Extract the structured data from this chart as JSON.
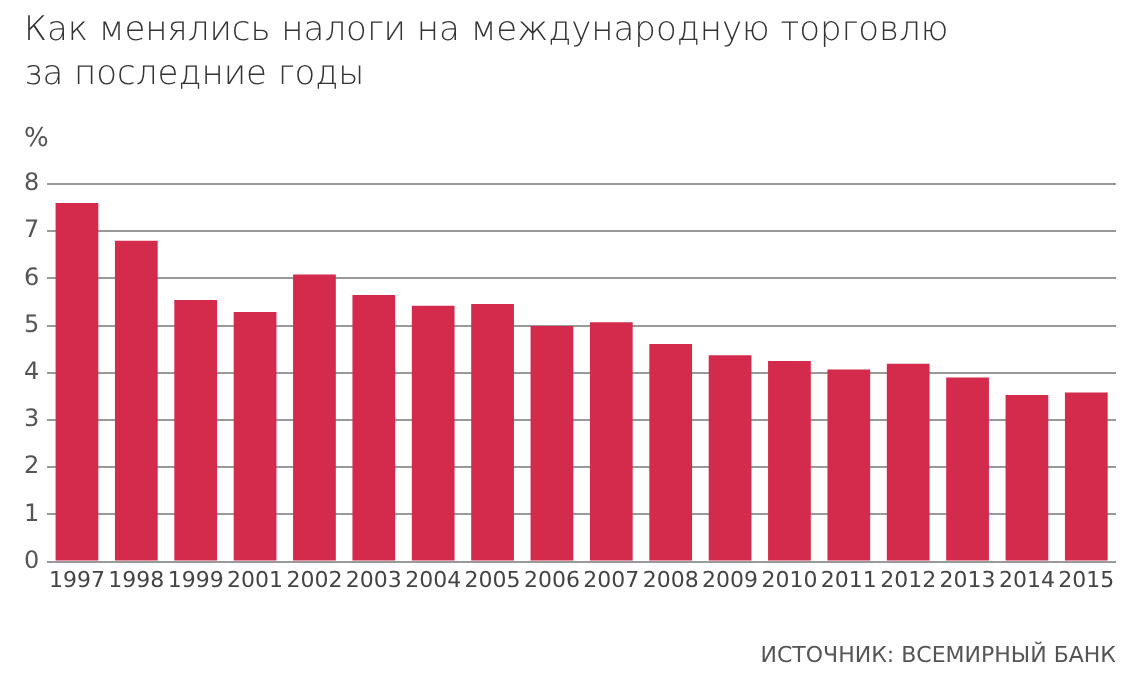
{
  "chart_data": {
    "type": "bar",
    "title": "Как менялись налоги на международную торговлю\nза последние годы",
    "ylabel": "%",
    "categories": [
      "1997",
      "1998",
      "1999",
      "2001",
      "2002",
      "2003",
      "2004",
      "2005",
      "2006",
      "2007",
      "2008",
      "2009",
      "2010",
      "2011",
      "2012",
      "2013",
      "2014",
      "2015"
    ],
    "values": [
      7.6,
      6.8,
      5.54,
      5.29,
      6.08,
      5.65,
      5.42,
      5.46,
      4.99,
      5.07,
      4.61,
      4.37,
      4.25,
      4.07,
      4.19,
      3.9,
      3.53,
      3.58
    ],
    "color": "#d42a4c",
    "ylim": [
      0,
      8
    ],
    "yticks": [
      0,
      1,
      2,
      3,
      4,
      5,
      6,
      7,
      8
    ],
    "grid": "y",
    "annotations": [
      "ИСТОЧНИК: ВСЕМИРНЫЙ БАНК"
    ]
  }
}
